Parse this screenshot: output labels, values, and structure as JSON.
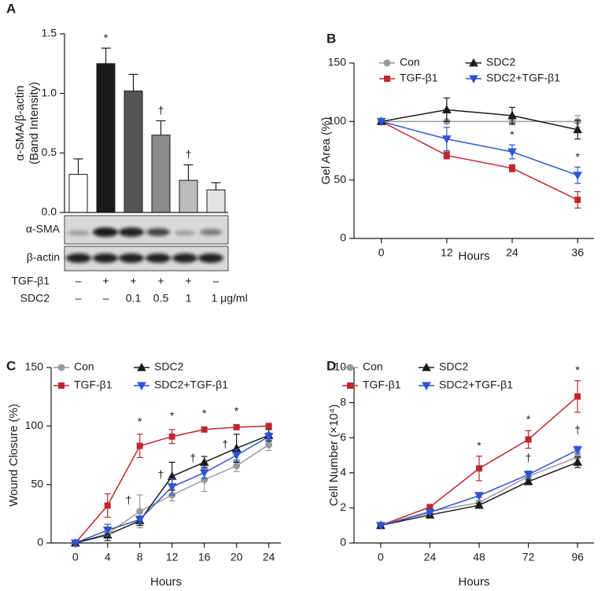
{
  "chart_data": [
    {
      "type": "bar",
      "panel": "A",
      "ylabel": [
        "α-SMA/β-actin",
        "(Band Intensity)"
      ],
      "categories": [
        null,
        null,
        null,
        null,
        null,
        null
      ],
      "values": [
        0.32,
        1.25,
        1.02,
        0.65,
        0.27,
        0.19
      ],
      "errors": [
        0.13,
        0.13,
        0.14,
        0.12,
        0.13,
        0.06
      ],
      "colors": [
        "#ffffff",
        "#1a1a1a",
        "#555555",
        "#8a8a8a",
        "#bcbcbc",
        "#e2e2e2"
      ],
      "annotations": [
        null,
        "*",
        null,
        "†",
        "†",
        null
      ],
      "ylim": [
        0,
        1.5
      ],
      "yticks": [
        {
          "value": 0,
          "label": "0.0"
        },
        {
          "value": 0.5,
          "label": "0.5"
        },
        {
          "value": 1,
          "label": "1.0"
        },
        {
          "value": 1.5,
          "label": "1.5"
        }
      ],
      "blot_labels": [
        "α-SMA",
        "β-actin"
      ],
      "conditions": [
        {
          "label": "TGF-β1",
          "values": [
            "–",
            "+",
            "+",
            "+",
            "+",
            "–"
          ]
        },
        {
          "label": "SDC2",
          "values": [
            "–",
            "–",
            "0.1",
            "0.5",
            "1",
            "1 μg/ml"
          ]
        }
      ]
    },
    {
      "type": "line",
      "panel": "B",
      "ylabel": "Gel Area (%)",
      "xlabel": "Hours",
      "x": [
        0,
        12,
        24,
        36
      ],
      "xlim": [
        -5,
        39
      ],
      "xticks": [
        0,
        12,
        24,
        36
      ],
      "ylim": [
        0,
        150
      ],
      "yticks": [
        0,
        50,
        100,
        150
      ],
      "series": [
        {
          "name": "Con",
          "color": "#9a9a9a",
          "marker": "circle",
          "values": [
            100,
            100,
            100,
            100
          ],
          "errors": [
            0,
            0,
            3,
            5
          ]
        },
        {
          "name": "TGF-β1",
          "color": "#c0272d",
          "marker": "square",
          "values": [
            100,
            71,
            60,
            33
          ],
          "errors": [
            0,
            3,
            3,
            7
          ]
        },
        {
          "name": "SDC2",
          "color": "#1a1a1a",
          "marker": "triangle-up",
          "values": [
            100,
            110,
            105,
            93
          ],
          "errors": [
            0,
            10,
            7,
            8
          ]
        },
        {
          "name": "SDC2+TGF-β1",
          "color": "#2f55d4",
          "marker": "triangle-down",
          "values": [
            100,
            85,
            74,
            54
          ],
          "errors": [
            0,
            10,
            6,
            7
          ]
        }
      ],
      "annotations": [
        {
          "text": "*",
          "x": 24,
          "y": 88
        },
        {
          "text": "*",
          "x": 36,
          "y": 69
        }
      ]
    },
    {
      "type": "line",
      "panel": "C",
      "ylabel": "Wound Closure (%)",
      "xlabel": "Hours",
      "x": [
        0,
        4,
        8,
        12,
        16,
        20,
        24
      ],
      "xlim": [
        -3,
        25.5
      ],
      "xticks": [
        0,
        4,
        8,
        12,
        16,
        20,
        24
      ],
      "ylim": [
        0,
        150
      ],
      "yticks": [
        0,
        50,
        100,
        150
      ],
      "series": [
        {
          "name": "Con",
          "color": "#9a9a9a",
          "marker": "circle",
          "values": [
            0,
            8,
            27,
            41,
            54,
            66,
            84
          ],
          "errors": [
            0,
            4,
            14,
            5,
            10,
            5,
            5
          ]
        },
        {
          "name": "TGF-β1",
          "color": "#c0272d",
          "marker": "square",
          "values": [
            0,
            32,
            83,
            91,
            97,
            99,
            100
          ],
          "errors": [
            0,
            10,
            10,
            6,
            2,
            1,
            1
          ]
        },
        {
          "name": "SDC2",
          "color": "#1a1a1a",
          "marker": "triangle-up",
          "values": [
            0,
            7,
            19,
            57,
            69,
            81,
            92
          ],
          "errors": [
            0,
            5,
            4,
            12,
            5,
            12,
            5
          ]
        },
        {
          "name": "SDC2+TGF-β1",
          "color": "#2f55d4",
          "marker": "triangle-down",
          "values": [
            0,
            11,
            20,
            48,
            60,
            75,
            91
          ],
          "errors": [
            0,
            5,
            3,
            7,
            5,
            5,
            3
          ]
        }
      ],
      "annotations": [
        {
          "text": "*",
          "x": 8,
          "y": 103
        },
        {
          "text": "*",
          "x": 12,
          "y": 108
        },
        {
          "text": "*",
          "x": 16,
          "y": 110
        },
        {
          "text": "*",
          "x": 20,
          "y": 112
        },
        {
          "text": "†",
          "x": 6.6,
          "y": 36
        },
        {
          "text": "†",
          "x": 10.6,
          "y": 58
        },
        {
          "text": "†",
          "x": 14.6,
          "y": 72
        },
        {
          "text": "†",
          "x": 18.6,
          "y": 84
        }
      ]
    },
    {
      "type": "line",
      "panel": "D",
      "ylabel": "Cell Number (×10⁴)",
      "xlabel": "Hours",
      "x": [
        0,
        24,
        48,
        72,
        96
      ],
      "xlim": [
        -13,
        104
      ],
      "xticks": [
        0,
        24,
        48,
        72,
        96
      ],
      "ylim": [
        0,
        10
      ],
      "yticks": [
        0,
        2,
        4,
        6,
        8,
        10
      ],
      "series": [
        {
          "name": "Con",
          "color": "#9a9a9a",
          "marker": "circle",
          "values": [
            1,
            1.8,
            2.3,
            3.8,
            4.9
          ],
          "errors": [
            0.05,
            0.1,
            0.1,
            0.2,
            0.3
          ]
        },
        {
          "name": "TGF-β1",
          "color": "#c0272d",
          "marker": "square",
          "values": [
            1,
            2.05,
            4.25,
            5.9,
            8.35
          ],
          "errors": [
            0.05,
            0.1,
            0.7,
            0.5,
            0.9
          ]
        },
        {
          "name": "SDC2",
          "color": "#1a1a1a",
          "marker": "triangle-up",
          "values": [
            1,
            1.6,
            2.15,
            3.5,
            4.6
          ],
          "errors": [
            0.05,
            0.05,
            0.1,
            0.1,
            0.3
          ]
        },
        {
          "name": "SDC2+TGF-β1",
          "color": "#2f55d4",
          "marker": "triangle-down",
          "values": [
            1,
            1.75,
            2.7,
            3.9,
            5.3
          ],
          "errors": [
            0.05,
            0.05,
            0.1,
            0.2,
            0.2
          ]
        }
      ],
      "annotations": [
        {
          "text": "*",
          "x": 48,
          "y": 5.5
        },
        {
          "text": "*",
          "x": 72,
          "y": 7
        },
        {
          "text": "*",
          "x": 96,
          "y": 9.8
        },
        {
          "text": "†",
          "x": 72,
          "y": 4.8
        },
        {
          "text": "†",
          "x": 96,
          "y": 6.4
        }
      ]
    }
  ]
}
